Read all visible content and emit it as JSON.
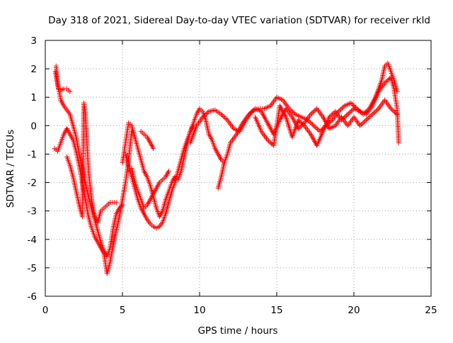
{
  "chart_data": {
    "type": "scatter",
    "title": "Day 318 of 2021, Sidereal Day-to-day VTEC variation (SDTVAR) for receiver rkld",
    "xlabel": "GPS time / hours",
    "ylabel": "SDTVAR / TECUs",
    "xlim": [
      0,
      25
    ],
    "ylim": [
      -6,
      3
    ],
    "xticks": [
      0,
      5,
      10,
      15,
      20,
      25
    ],
    "yticks": [
      -6,
      -5,
      -4,
      -3,
      -2,
      -1,
      0,
      1,
      2,
      3
    ],
    "grid": true,
    "grid_style": "dotted",
    "legend": "none",
    "marker": "+",
    "color": "#ff0000",
    "series": [
      {
        "points": [
          [
            0.65,
            1.9
          ],
          [
            0.75,
            1.6
          ],
          [
            0.85,
            1.3
          ],
          [
            1.0,
            1.25
          ],
          [
            1.2,
            1.3
          ],
          [
            1.4,
            1.3
          ],
          [
            1.6,
            1.2
          ]
        ]
      },
      {
        "points": [
          [
            0.7,
            2.1
          ],
          [
            0.8,
            1.5
          ],
          [
            0.9,
            1.2
          ],
          [
            1.0,
            0.9
          ],
          [
            1.2,
            0.7
          ],
          [
            1.4,
            0.55
          ],
          [
            1.6,
            0.4
          ],
          [
            1.8,
            0.0
          ],
          [
            2.0,
            -0.4
          ],
          [
            2.2,
            -1.0
          ],
          [
            2.4,
            -1.5
          ],
          [
            2.6,
            -2.0
          ],
          [
            2.8,
            -2.5
          ],
          [
            3.0,
            -2.9
          ],
          [
            3.2,
            -3.3
          ],
          [
            3.4,
            -3.7
          ],
          [
            3.6,
            -4.1
          ],
          [
            3.8,
            -4.4
          ],
          [
            4.0,
            -4.6
          ],
          [
            4.2,
            -4.3
          ],
          [
            4.4,
            -3.6
          ],
          [
            4.6,
            -3.1
          ],
          [
            4.8,
            -2.9
          ],
          [
            5.0,
            -2.8
          ]
        ]
      },
      {
        "points": [
          [
            0.6,
            -0.8
          ],
          [
            0.8,
            -0.9
          ],
          [
            1.0,
            -0.6
          ],
          [
            1.2,
            -0.3
          ],
          [
            1.4,
            -0.1
          ],
          [
            1.6,
            -0.3
          ],
          [
            1.8,
            -0.5
          ],
          [
            2.0,
            -0.9
          ],
          [
            2.2,
            -1.4
          ],
          [
            2.4,
            -2.0
          ],
          [
            2.6,
            -2.6
          ],
          [
            2.8,
            -3.2
          ],
          [
            3.0,
            -3.6
          ],
          [
            3.2,
            -3.9
          ],
          [
            3.4,
            -4.1
          ],
          [
            3.6,
            -4.3
          ],
          [
            3.8,
            -4.5
          ],
          [
            4.0,
            -5.2
          ],
          [
            4.2,
            -4.8
          ],
          [
            4.4,
            -4.2
          ],
          [
            4.6,
            -3.7
          ],
          [
            4.8,
            -3.2
          ],
          [
            5.0,
            -2.6
          ],
          [
            5.2,
            -2.0
          ],
          [
            5.4,
            -1.2
          ],
          [
            5.6,
            -0.2
          ]
        ]
      },
      {
        "points": [
          [
            1.4,
            -1.1
          ],
          [
            1.6,
            -1.4
          ],
          [
            1.8,
            -1.8
          ],
          [
            2.0,
            -2.3
          ],
          [
            2.2,
            -2.8
          ],
          [
            2.4,
            -3.2
          ],
          [
            2.5,
            0.8
          ],
          [
            2.6,
            0.4
          ],
          [
            2.7,
            -0.6
          ],
          [
            2.8,
            -1.6
          ],
          [
            3.0,
            -2.6
          ],
          [
            3.2,
            -3.2
          ],
          [
            3.4,
            -3.4
          ],
          [
            3.6,
            -3.0
          ],
          [
            3.8,
            -2.9
          ],
          [
            4.0,
            -2.8
          ],
          [
            4.2,
            -2.7
          ],
          [
            4.6,
            -2.7
          ]
        ]
      },
      {
        "points": [
          [
            5.0,
            -1.3
          ],
          [
            5.2,
            -0.6
          ],
          [
            5.4,
            0.1
          ],
          [
            5.6,
            0.0
          ],
          [
            5.8,
            -0.4
          ],
          [
            6.0,
            -0.8
          ],
          [
            6.2,
            -1.2
          ],
          [
            6.4,
            -1.6
          ],
          [
            6.6,
            -1.8
          ],
          [
            6.8,
            -2.1
          ],
          [
            7.0,
            -2.5
          ],
          [
            7.2,
            -2.9
          ],
          [
            7.4,
            -3.2
          ],
          [
            7.6,
            -3.0
          ],
          [
            7.8,
            -2.6
          ],
          [
            8.0,
            -2.3
          ],
          [
            8.2,
            -2.0
          ],
          [
            8.4,
            -1.8
          ],
          [
            8.6,
            -1.9
          ],
          [
            8.8,
            -1.6
          ],
          [
            9.0,
            -1.1
          ],
          [
            9.2,
            -0.6
          ],
          [
            9.4,
            -0.2
          ],
          [
            9.6,
            0.1
          ],
          [
            9.8,
            0.4
          ],
          [
            10.0,
            0.6
          ],
          [
            10.2,
            0.5
          ],
          [
            10.4,
            0.2
          ],
          [
            10.6,
            -0.3
          ],
          [
            10.8,
            -0.5
          ],
          [
            11.0,
            -0.8
          ],
          [
            11.2,
            -1.0
          ],
          [
            11.4,
            -1.2
          ],
          [
            11.6,
            -1.3
          ]
        ]
      },
      {
        "points": [
          [
            5.2,
            -1.0
          ],
          [
            5.4,
            -1.4
          ],
          [
            5.6,
            -1.8
          ],
          [
            5.8,
            -2.2
          ],
          [
            6.0,
            -2.6
          ],
          [
            6.2,
            -2.9
          ],
          [
            6.4,
            -3.1
          ],
          [
            6.6,
            -3.3
          ],
          [
            6.8,
            -3.45
          ],
          [
            7.0,
            -3.55
          ],
          [
            7.2,
            -3.6
          ],
          [
            7.4,
            -3.55
          ],
          [
            7.6,
            -3.4
          ],
          [
            7.8,
            -3.1
          ],
          [
            8.0,
            -2.7
          ],
          [
            8.2,
            -2.3
          ],
          [
            8.4,
            -2.0
          ],
          [
            8.6,
            -1.6
          ],
          [
            8.8,
            -1.2
          ],
          [
            9.0,
            -0.8
          ],
          [
            9.2,
            -0.5
          ],
          [
            9.4,
            -0.2
          ],
          [
            9.6,
            0.0
          ]
        ]
      },
      {
        "points": [
          [
            5.6,
            -1.5
          ],
          [
            5.8,
            -2.0
          ],
          [
            6.0,
            -2.3
          ],
          [
            6.2,
            -2.6
          ],
          [
            6.4,
            -2.9
          ],
          [
            6.6,
            -2.8
          ],
          [
            6.8,
            -2.6
          ],
          [
            7.0,
            -2.4
          ],
          [
            7.2,
            -2.2
          ],
          [
            7.4,
            -2.0
          ],
          [
            7.6,
            -1.9
          ],
          [
            7.8,
            -1.8
          ],
          [
            8.0,
            -1.6
          ]
        ]
      },
      {
        "points": [
          [
            6.2,
            -0.2
          ],
          [
            6.4,
            -0.3
          ],
          [
            6.6,
            -0.4
          ],
          [
            6.8,
            -0.6
          ],
          [
            7.0,
            -0.8
          ]
        ]
      },
      {
        "points": [
          [
            9.4,
            -0.6
          ],
          [
            9.8,
            0.0
          ],
          [
            10.2,
            0.3
          ],
          [
            10.6,
            0.5
          ],
          [
            11.0,
            0.55
          ],
          [
            11.4,
            0.4
          ],
          [
            11.8,
            0.2
          ],
          [
            12.2,
            -0.1
          ],
          [
            12.6,
            -0.2
          ],
          [
            13.0,
            0.2
          ],
          [
            13.4,
            0.5
          ],
          [
            13.8,
            0.6
          ],
          [
            14.2,
            0.6
          ],
          [
            14.6,
            0.7
          ],
          [
            15.0,
            1.0
          ],
          [
            15.4,
            0.9
          ],
          [
            15.8,
            0.6
          ],
          [
            16.2,
            0.4
          ],
          [
            16.6,
            0.3
          ],
          [
            17.0,
            0.2
          ],
          [
            17.4,
            0.0
          ],
          [
            17.8,
            -0.2
          ],
          [
            18.2,
            0.0
          ],
          [
            18.6,
            0.2
          ],
          [
            19.0,
            0.5
          ],
          [
            19.4,
            0.7
          ],
          [
            19.8,
            0.8
          ],
          [
            20.2,
            0.6
          ],
          [
            20.6,
            0.4
          ],
          [
            21.0,
            0.6
          ],
          [
            21.4,
            1.0
          ],
          [
            21.8,
            1.6
          ],
          [
            22.0,
            2.1
          ],
          [
            22.2,
            2.2
          ],
          [
            22.4,
            1.9
          ],
          [
            22.6,
            1.6
          ],
          [
            22.8,
            1.2
          ]
        ]
      },
      {
        "points": [
          [
            11.2,
            -2.2
          ],
          [
            11.4,
            -1.8
          ],
          [
            11.6,
            -1.3
          ],
          [
            11.8,
            -1.0
          ],
          [
            12.0,
            -0.6
          ],
          [
            12.4,
            -0.3
          ],
          [
            12.8,
            0.1
          ],
          [
            13.2,
            0.4
          ],
          [
            13.6,
            0.6
          ],
          [
            14.0,
            0.5
          ],
          [
            14.4,
            0.1
          ],
          [
            14.8,
            -0.3
          ],
          [
            15.2,
            0.2
          ],
          [
            15.6,
            0.6
          ],
          [
            16.0,
            0.3
          ],
          [
            16.4,
            -0.1
          ],
          [
            16.8,
            0.1
          ],
          [
            17.2,
            0.4
          ],
          [
            17.6,
            0.6
          ],
          [
            18.0,
            0.3
          ],
          [
            18.4,
            -0.1
          ],
          [
            18.8,
            0.0
          ],
          [
            19.2,
            0.3
          ],
          [
            19.6,
            0.0
          ],
          [
            20.0,
            0.3
          ],
          [
            20.4,
            0.0
          ],
          [
            20.8,
            0.2
          ],
          [
            21.2,
            0.4
          ],
          [
            21.6,
            0.6
          ],
          [
            22.0,
            0.9
          ],
          [
            22.4,
            0.6
          ],
          [
            22.8,
            0.4
          ]
        ]
      },
      {
        "points": [
          [
            13.6,
            0.3
          ],
          [
            14.0,
            -0.2
          ],
          [
            14.4,
            -0.5
          ],
          [
            14.8,
            -0.7
          ],
          [
            15.2,
            0.7
          ],
          [
            15.6,
            0.3
          ],
          [
            16.0,
            -0.4
          ],
          [
            16.4,
            0.2
          ],
          [
            16.8,
            0.0
          ],
          [
            17.2,
            -0.3
          ],
          [
            17.6,
            -0.7
          ],
          [
            18.0,
            -0.2
          ],
          [
            18.4,
            0.3
          ],
          [
            18.8,
            0.5
          ],
          [
            19.2,
            0.2
          ],
          [
            19.6,
            0.4
          ],
          [
            20.0,
            0.6
          ],
          [
            20.4,
            0.5
          ],
          [
            20.8,
            0.4
          ],
          [
            21.2,
            0.7
          ],
          [
            21.6,
            1.2
          ],
          [
            22.0,
            1.5
          ],
          [
            22.4,
            1.7
          ],
          [
            22.6,
            1.3
          ],
          [
            22.8,
            0.6
          ],
          [
            22.9,
            -0.6
          ]
        ]
      }
    ]
  }
}
